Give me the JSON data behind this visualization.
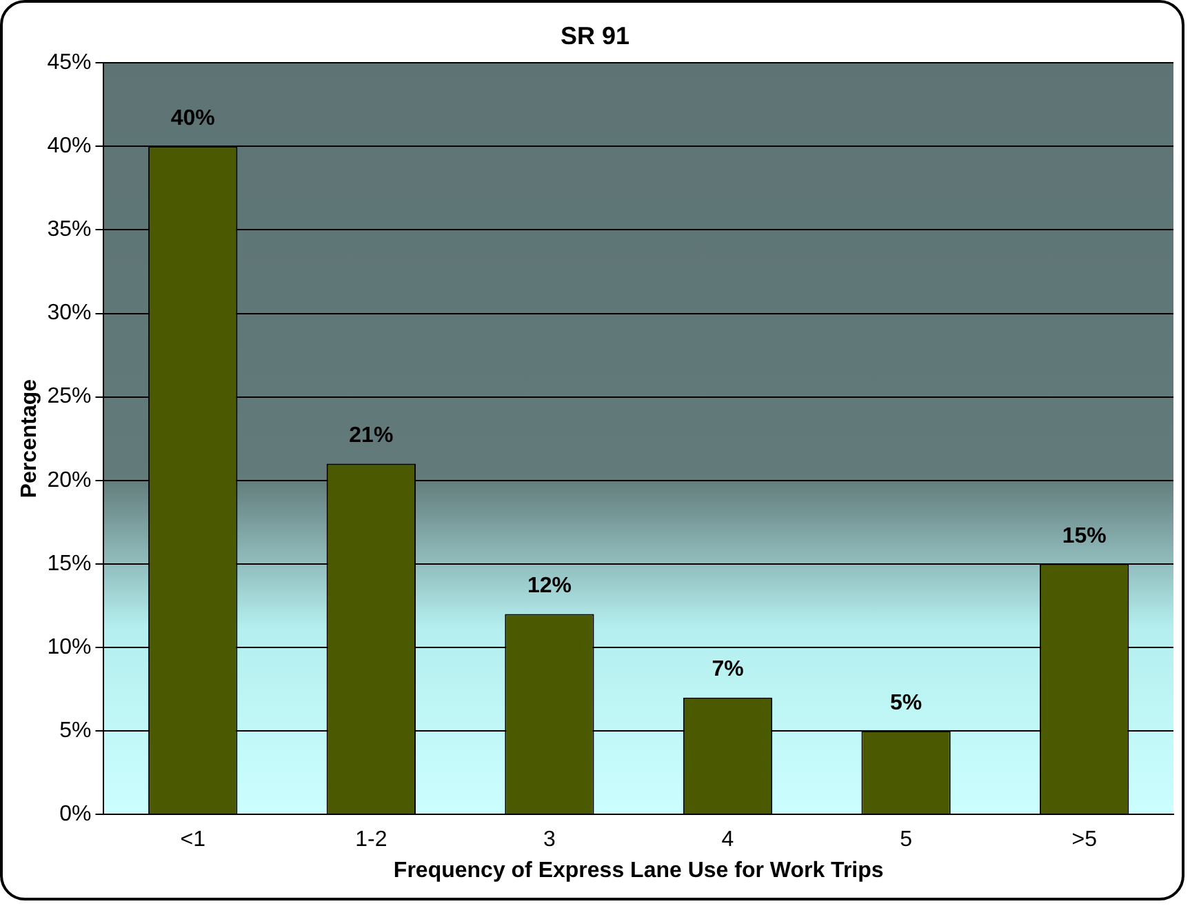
{
  "chart_data": {
    "type": "bar",
    "title": "SR 91",
    "xlabel": "Frequency of Express Lane Use for Work Trips",
    "ylabel": "Percentage",
    "categories": [
      "<1",
      "1-2",
      "3",
      "4",
      "5",
      ">5"
    ],
    "values": [
      40,
      21,
      12,
      7,
      5,
      15
    ],
    "value_labels": [
      "40%",
      "21%",
      "12%",
      "7%",
      "5%",
      "15%"
    ],
    "color": "#4b5a00",
    "ylim": [
      0,
      45
    ],
    "yticks": [
      {
        "value": 0,
        "label": "0%"
      },
      {
        "value": 5,
        "label": "5%"
      },
      {
        "value": 10,
        "label": "10%"
      },
      {
        "value": 15,
        "label": "15%"
      },
      {
        "value": 20,
        "label": "20%"
      },
      {
        "value": 25,
        "label": "25%"
      },
      {
        "value": 30,
        "label": "30%"
      },
      {
        "value": 35,
        "label": "35%"
      },
      {
        "value": 40,
        "label": "40%"
      },
      {
        "value": 45,
        "label": "45%"
      }
    ],
    "grid": "y",
    "legend": false
  }
}
